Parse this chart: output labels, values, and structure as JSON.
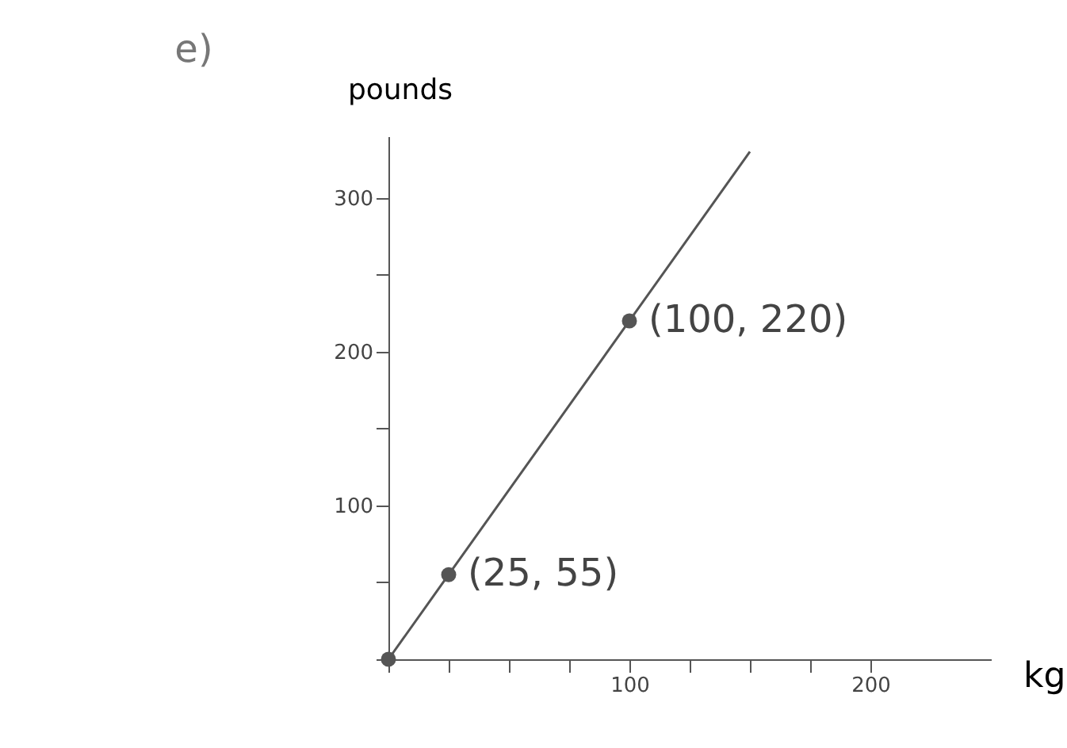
{
  "chart_data": {
    "type": "line",
    "title": "e)",
    "xlabel": "kg",
    "ylabel": "pounds",
    "xlim": [
      0,
      250
    ],
    "ylim": [
      0,
      340
    ],
    "xticks": [
      {
        "value": 0,
        "label": null
      },
      {
        "value": 25,
        "label": null
      },
      {
        "value": 50,
        "label": null
      },
      {
        "value": 75,
        "label": null
      },
      100,
      {
        "value": 125,
        "label": null
      },
      {
        "value": 150,
        "label": null
      },
      {
        "value": 175,
        "label": null
      },
      200
    ],
    "yticks": [
      {
        "value": 0,
        "label": null
      },
      {
        "value": 50,
        "label": null
      },
      100,
      {
        "value": 150,
        "label": null
      },
      200,
      {
        "value": 250,
        "label": null
      },
      300
    ],
    "grid": false,
    "series": [
      {
        "color": "#555555",
        "x": [
          0,
          25,
          100,
          150
        ],
        "values": [
          0,
          55,
          220,
          330
        ]
      },
      {
        "type": "scatter",
        "color": "#555555",
        "x": [
          0,
          25,
          100
        ],
        "values": [
          0,
          55,
          220
        ]
      }
    ],
    "annotations": [
      {
        "text": "(25, 55)",
        "x": 25,
        "y": 55
      },
      {
        "text": "(100, 220)",
        "x": 100,
        "y": 220
      }
    ]
  }
}
